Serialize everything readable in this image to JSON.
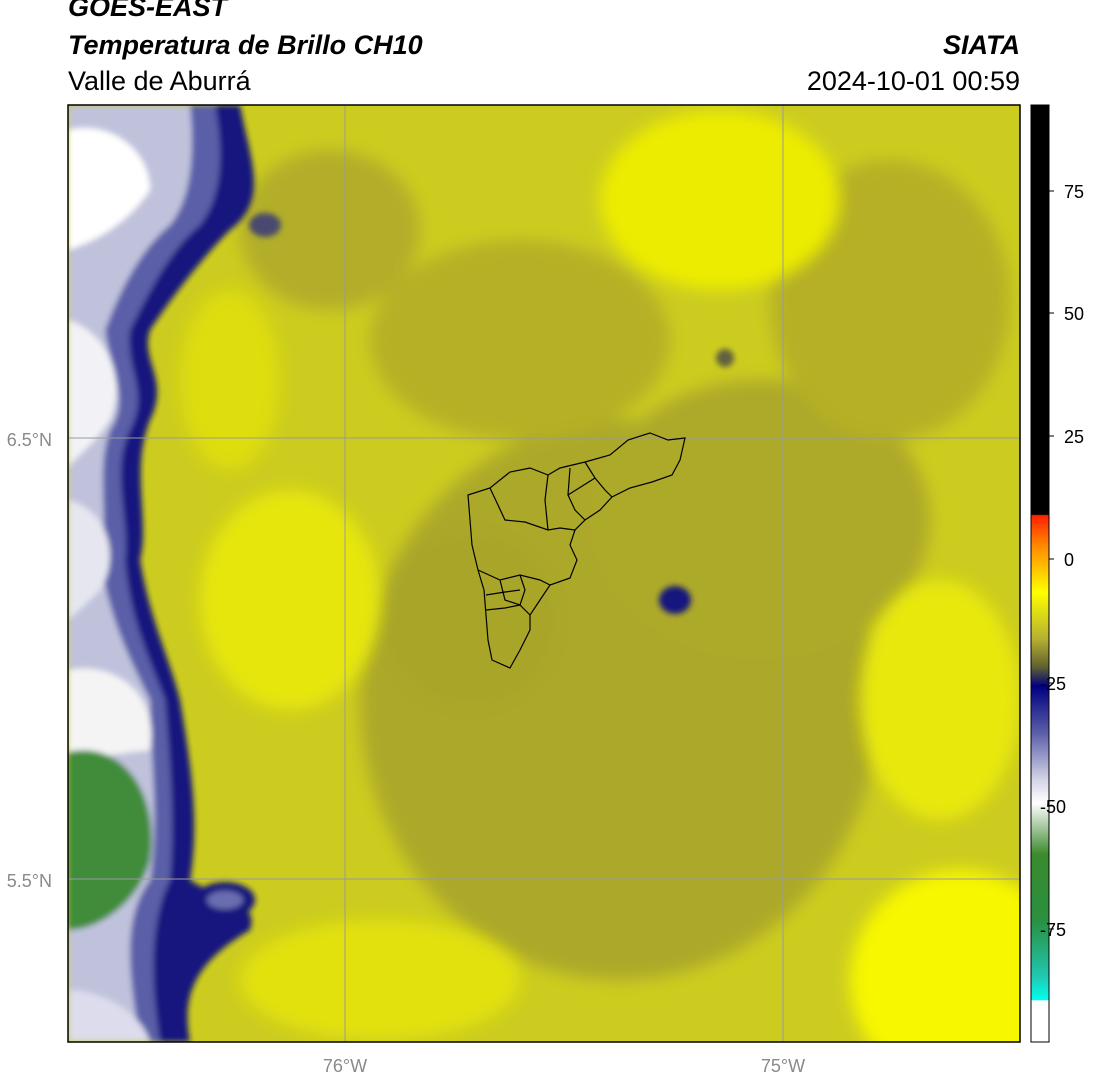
{
  "header": {
    "satellite": "GOES-EAST",
    "product": "Temperatura de Brillo CH10",
    "region": "Valle de Aburrá",
    "organization": "SIATA",
    "datetime": "2024-10-01 00:59"
  },
  "map": {
    "lat_labels": [
      "6.5°N",
      "5.5°N"
    ],
    "lon_labels": [
      "76°W",
      "75°W"
    ]
  },
  "colorbar": {
    "ticks": [
      "75",
      "50",
      "25",
      "0",
      "-25",
      "-50",
      "-75"
    ]
  }
}
